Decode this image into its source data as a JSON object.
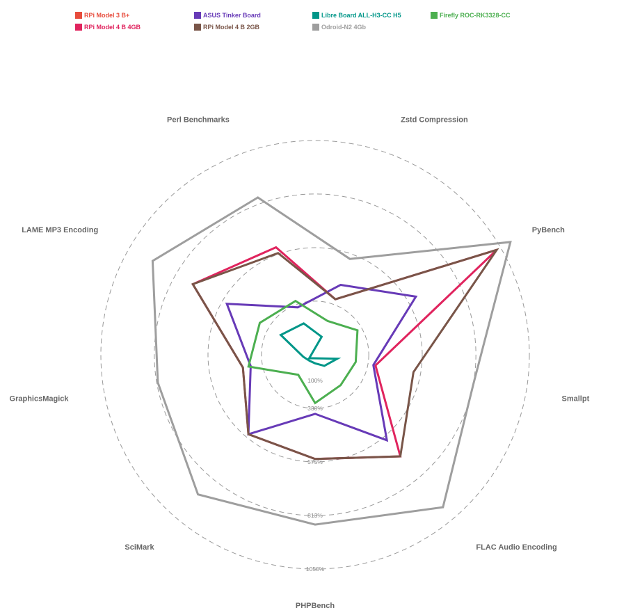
{
  "chart_data": {
    "type": "radar",
    "axes": [
      "Zstd Compression",
      "PyBench",
      "Smallpt",
      "FLAC Audio Encoding",
      "PHPBench",
      "SciMark",
      "GraphicsMagick",
      "LAME MP3 Encoding",
      "Perl Benchmarks"
    ],
    "tick_labels": [
      "100%",
      "338%",
      "575%",
      "813%",
      "1050%"
    ],
    "scale": {
      "center_value": 100,
      "max_value": 1050
    },
    "grid": "dashed circles",
    "legend_position": "top",
    "series": [
      {
        "name": "RPi Model 3 B+",
        "color": "#e74c3c",
        "values": [
          100,
          100,
          100,
          100,
          100,
          100,
          100,
          100,
          100
        ]
      },
      {
        "name": "RPi Model 4 B 4GB",
        "color": "#e0245e",
        "values": [
          362,
          1030,
          372,
          688,
          562,
          560,
          425,
          726,
          607
        ]
      },
      {
        "name": "ASUS Tinker Board",
        "color": "#673ab7",
        "values": [
          430,
          616,
          362,
          595,
          362,
          560,
          390,
          552,
          324
        ]
      },
      {
        "name": "RPi Model 4 B 2GB",
        "color": "#795548",
        "values": [
          362,
          1030,
          543,
          688,
          562,
          560,
          425,
          726,
          580
        ]
      },
      {
        "name": "Libre Board ALL-H3-CC H5",
        "color": "#009688",
        "values": [
          185,
          70,
          200,
          164,
          138,
          136,
          153,
          276,
          248
        ]
      },
      {
        "name": "Odroid-N2 4Gb",
        "color": "#9e9e9e",
        "values": [
          552,
          1100,
          814,
          982,
          853,
          908,
          808,
          932,
          842
        ]
      },
      {
        "name": "Firefly ROC-RK3328-CC",
        "color": "#4caf50",
        "values": [
          260,
          317,
          283,
          276,
          314,
          216,
          400,
          383,
          354
        ]
      }
    ]
  }
}
